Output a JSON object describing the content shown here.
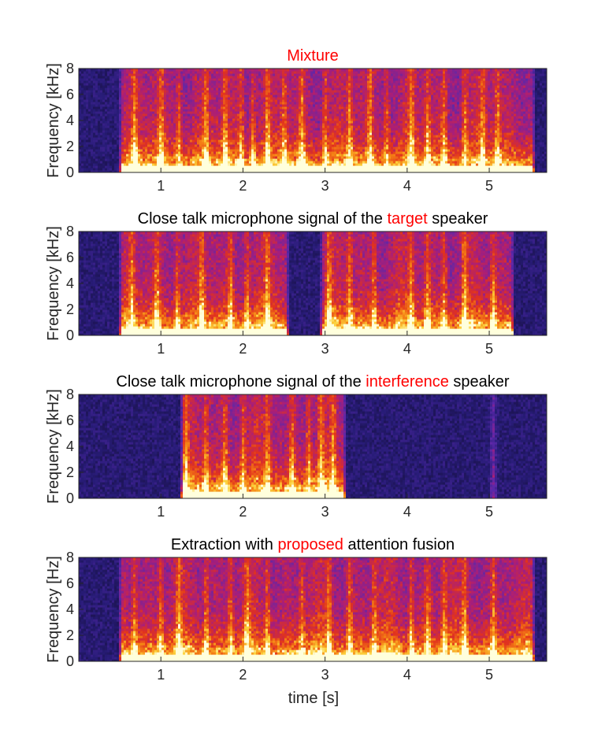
{
  "colors": {
    "title_highlight": "#ff0000",
    "title_normal": "#000000",
    "axis": "#262626",
    "colormap": "hot-on-indigo"
  },
  "xlabel": "time [s]",
  "chart_data": [
    {
      "type": "heatmap",
      "title_parts": [
        {
          "text": "Mixture",
          "highlight": true
        }
      ],
      "ylabel": "Frequency [kHz]",
      "xlim": [
        0,
        5.7
      ],
      "ylim": [
        0,
        8
      ],
      "xticks": [
        1,
        2,
        3,
        4,
        5
      ],
      "yticks": [
        0,
        2,
        4,
        6,
        8
      ],
      "active_intervals": [
        [
          0.5,
          5.55
        ]
      ],
      "bright_columns": [
        0.68,
        1.0,
        1.22,
        1.55,
        1.78,
        1.98,
        2.12,
        2.3,
        2.5,
        2.72,
        3.0,
        3.3,
        3.55,
        3.75,
        4.05,
        4.25,
        4.45,
        4.7,
        4.92,
        5.1
      ]
    },
    {
      "type": "heatmap",
      "title_parts": [
        {
          "text": "Close talk microphone signal of the ",
          "highlight": false
        },
        {
          "text": "target",
          "highlight": true
        },
        {
          "text": " speaker",
          "highlight": false
        }
      ],
      "ylabel": "Frequency [kHz]",
      "xlim": [
        0,
        5.7
      ],
      "ylim": [
        0,
        8
      ],
      "xticks": [
        1,
        2,
        3,
        4,
        5
      ],
      "yticks": [
        0,
        2,
        4,
        6,
        8
      ],
      "active_intervals": [
        [
          0.5,
          2.55
        ],
        [
          2.95,
          5.3
        ]
      ],
      "bright_columns": [
        0.65,
        0.95,
        1.2,
        1.5,
        1.85,
        2.05,
        2.3,
        3.05,
        3.3,
        3.6,
        4.05,
        4.25,
        4.45,
        4.7,
        5.05
      ]
    },
    {
      "type": "heatmap",
      "title_parts": [
        {
          "text": "Close talk microphone signal of the ",
          "highlight": false
        },
        {
          "text": "interference",
          "highlight": true
        },
        {
          "text": " speaker",
          "highlight": false
        }
      ],
      "ylabel": "Frequency [kHz]",
      "xlim": [
        0,
        5.7
      ],
      "ylim": [
        0,
        8
      ],
      "xticks": [
        1,
        2,
        3,
        4,
        5
      ],
      "yticks": [
        0,
        2,
        4,
        6,
        8
      ],
      "active_intervals": [
        [
          1.25,
          3.25
        ]
      ],
      "bright_columns": [
        1.3,
        1.55,
        1.78,
        2.0,
        2.3,
        2.6,
        2.8,
        2.95,
        3.1,
        5.05
      ]
    },
    {
      "type": "heatmap",
      "title_parts": [
        {
          "text": "Extraction with ",
          "highlight": false
        },
        {
          "text": "proposed",
          "highlight": true
        },
        {
          "text": " attention fusion",
          "highlight": false
        }
      ],
      "ylabel": "Frequency [Hz]",
      "xlim": [
        0,
        5.7
      ],
      "ylim": [
        0,
        8
      ],
      "xticks": [
        1,
        2,
        3,
        4,
        5
      ],
      "yticks": [
        0,
        2,
        4,
        6,
        8
      ],
      "active_intervals": [
        [
          0.5,
          5.55
        ]
      ],
      "bright_columns": [
        0.68,
        1.0,
        1.22,
        1.55,
        1.85,
        2.05,
        2.3,
        2.72,
        3.05,
        3.3,
        3.6,
        4.05,
        4.25,
        4.45,
        4.7,
        5.05
      ]
    }
  ]
}
